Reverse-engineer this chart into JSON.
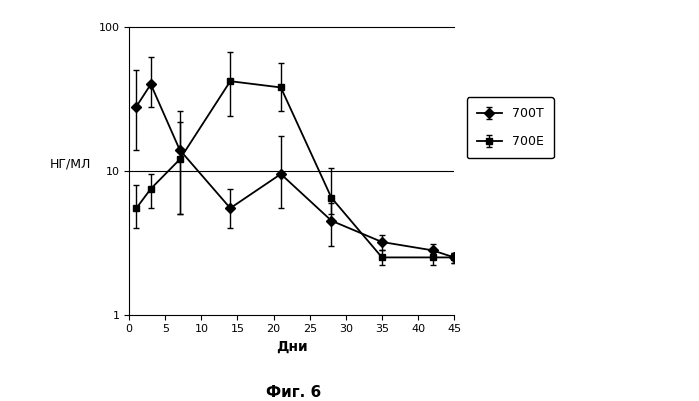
{
  "title": "",
  "xlabel": "Дни",
  "ylabel": "НГ/МЛ",
  "caption": "Фиг. 6",
  "xlim": [
    0,
    45
  ],
  "ylim_log": [
    1,
    100
  ],
  "hline_y": 10,
  "series_700T": {
    "label": "700T",
    "marker": "D",
    "x": [
      1,
      3,
      7,
      14,
      21,
      28,
      35,
      42,
      45
    ],
    "y": [
      28,
      40,
      14,
      5.5,
      9.5,
      4.5,
      3.2,
      2.8,
      2.5
    ],
    "yerr_lo": [
      14,
      12,
      9,
      1.5,
      4,
      1.5,
      0.4,
      0.3,
      0.2
    ],
    "yerr_hi": [
      22,
      22,
      12,
      2,
      8,
      1.5,
      0.4,
      0.3,
      0.2
    ]
  },
  "series_700E": {
    "label": "700E",
    "marker": "s",
    "x": [
      1,
      3,
      7,
      14,
      21,
      28,
      35,
      42,
      45
    ],
    "y": [
      5.5,
      7.5,
      12,
      42,
      38,
      6.5,
      2.5,
      2.5,
      2.5
    ],
    "yerr_lo": [
      1.5,
      2,
      7,
      18,
      12,
      1.5,
      0.3,
      0.3,
      0.2
    ],
    "yerr_hi": [
      2.5,
      2,
      10,
      25,
      18,
      4,
      0.3,
      0.3,
      0.2
    ]
  },
  "line_color": "#000000",
  "background_color": "#ffffff",
  "xticks": [
    0,
    5,
    10,
    15,
    20,
    25,
    30,
    35,
    40,
    45
  ]
}
